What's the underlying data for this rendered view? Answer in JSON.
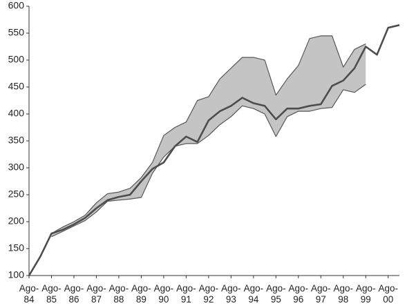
{
  "chart_data": {
    "type": "line",
    "x": [
      0,
      6,
      12,
      18,
      24,
      30,
      36,
      42,
      48,
      54,
      60,
      66,
      72,
      78,
      84,
      90,
      96,
      102,
      108,
      114,
      120,
      126,
      132,
      138,
      144,
      150,
      156,
      162,
      168,
      174,
      180,
      186,
      192,
      198
    ],
    "xlim": [
      0,
      198
    ],
    "xticks": [
      {
        "value": 0,
        "label": "Ago-84"
      },
      {
        "value": 12,
        "label": "Ago-85"
      },
      {
        "value": 24,
        "label": "Ago-86"
      },
      {
        "value": 36,
        "label": "Ago-87"
      },
      {
        "value": 48,
        "label": "Ago-88"
      },
      {
        "value": 60,
        "label": "Ago-89"
      },
      {
        "value": 72,
        "label": "Ago-90"
      },
      {
        "value": 84,
        "label": "Ago-91"
      },
      {
        "value": 96,
        "label": "Ago-92"
      },
      {
        "value": 108,
        "label": "Ago-93"
      },
      {
        "value": 120,
        "label": "Ago-94"
      },
      {
        "value": 132,
        "label": "Ago-95"
      },
      {
        "value": 144,
        "label": "Ago-96"
      },
      {
        "value": 156,
        "label": "Ago-97"
      },
      {
        "value": 168,
        "label": "Ago-98"
      },
      {
        "value": 180,
        "label": "Ago-99"
      },
      {
        "value": 192,
        "label": "Ago-00"
      }
    ],
    "ylim": [
      100,
      600
    ],
    "yticks": [
      100,
      150,
      200,
      250,
      300,
      350,
      400,
      450,
      500,
      550,
      600
    ],
    "series": [
      {
        "color": "#4d4d4d",
        "values": [
          100,
          135,
          178,
          185,
          195,
          207,
          225,
          240,
          246,
          250,
          275,
          298,
          310,
          340,
          358,
          348,
          388,
          405,
          415,
          430,
          420,
          415,
          390,
          410,
          410,
          415,
          418,
          452,
          462,
          485,
          525,
          510,
          560,
          565
        ]
      }
    ],
    "band": {
      "color": "#c4c4c4",
      "upper": [
        null,
        null,
        178,
        190,
        200,
        212,
        235,
        252,
        255,
        262,
        282,
        310,
        360,
        375,
        385,
        425,
        432,
        465,
        485,
        505,
        505,
        500,
        435,
        465,
        490,
        540,
        545,
        545,
        487,
        520,
        530,
        null,
        null,
        null
      ],
      "lower": [
        null,
        null,
        172,
        182,
        192,
        202,
        218,
        238,
        240,
        242,
        245,
        290,
        320,
        340,
        345,
        345,
        360,
        380,
        395,
        415,
        410,
        400,
        358,
        395,
        405,
        405,
        410,
        412,
        445,
        440,
        455,
        null,
        null,
        null
      ]
    }
  }
}
